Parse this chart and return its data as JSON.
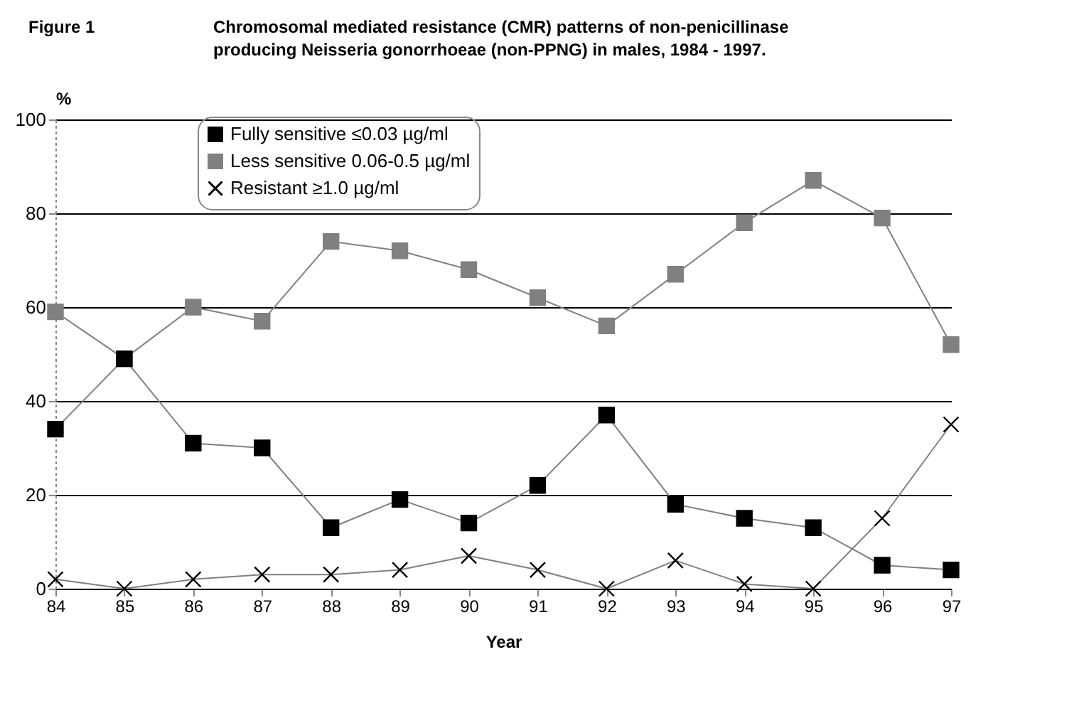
{
  "chart_data": {
    "type": "line",
    "title": "Figure 1",
    "subtitle": "Chromosomal mediated resistance (CMR) patterns of non-penicillinase producing Neisseria gonorrhoeae (non-PPNG) in males, 1984 - 1997.",
    "xlabel": "Year",
    "ylabel": "%",
    "categories": [
      "84",
      "85",
      "86",
      "87",
      "88",
      "89",
      "90",
      "91",
      "92",
      "93",
      "94",
      "95",
      "96",
      "97"
    ],
    "series": [
      {
        "name": "Fully sensitive ≤0.03 µg/ml",
        "color": "#000000",
        "marker": "square",
        "values": [
          34,
          49,
          31,
          30,
          13,
          19,
          14,
          22,
          37,
          18,
          15,
          13,
          5,
          4
        ]
      },
      {
        "name": "Less sensitive 0.06-0.5 µg/ml",
        "color": "#808080",
        "marker": "square",
        "values": [
          59,
          49,
          60,
          57,
          74,
          72,
          68,
          62,
          56,
          67,
          78,
          87,
          79,
          52
        ]
      },
      {
        "name": "Resistant ≥1.0 µg/ml",
        "color": "#000000",
        "marker": "cross",
        "values": [
          2,
          0,
          2,
          3,
          3,
          4,
          7,
          4,
          0,
          6,
          1,
          0,
          15,
          35
        ]
      }
    ],
    "ylim": [
      0,
      100
    ],
    "yticks": [
      0,
      20,
      40,
      60,
      80,
      100
    ],
    "grid": "y",
    "legend": "top left"
  }
}
